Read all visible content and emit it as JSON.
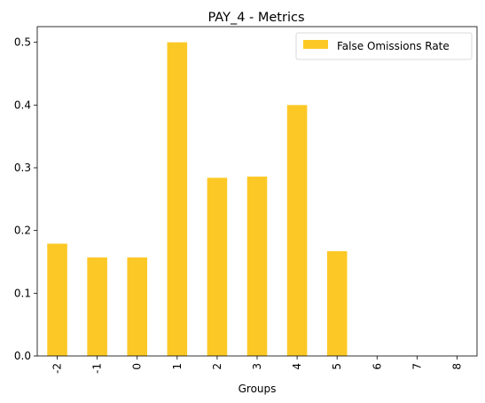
{
  "chart_data": {
    "type": "bar",
    "title": "PAY_4 - Metrics",
    "xlabel": "Groups",
    "ylabel": "",
    "categories": [
      "-2",
      "-1",
      "0",
      "1",
      "2",
      "3",
      "4",
      "5",
      "6",
      "7",
      "8"
    ],
    "series": [
      {
        "name": "False Omissions Rate",
        "color": "#fcc826",
        "values": [
          0.179,
          0.157,
          0.157,
          0.5,
          0.284,
          0.286,
          0.4,
          0.167,
          0,
          0,
          0
        ]
      }
    ],
    "ylim": [
      0,
      0.525
    ],
    "yticks": [
      "0.0",
      "0.1",
      "0.2",
      "0.3",
      "0.4",
      "0.5"
    ],
    "grid": false,
    "legend_position": "top-right"
  }
}
